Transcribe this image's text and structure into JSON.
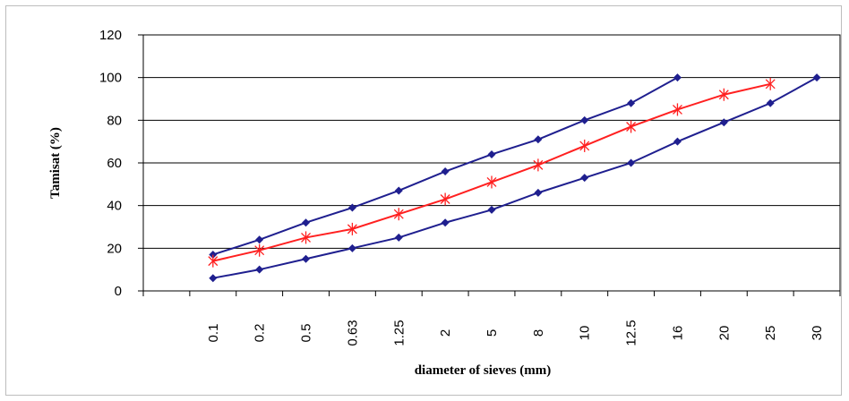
{
  "chart_data": {
    "type": "line",
    "title": "",
    "xlabel": "diameter of sieves (mm)",
    "ylabel": "Tamisat (%)",
    "ylim": [
      0,
      120
    ],
    "yticks": [
      "0",
      "20",
      "40",
      "60",
      "80",
      "100",
      "120"
    ],
    "categories": [
      "0.1",
      "0.2",
      "0.5",
      "0.63",
      "1.25",
      "2",
      "5",
      "8",
      "10",
      "12.5",
      "16",
      "20",
      "25",
      "30"
    ],
    "grid": "horizontal",
    "legend": "none",
    "series": [
      {
        "color": "#1f1f8f",
        "marker": "diamond",
        "x": [
          "0.1",
          "0.2",
          "0.5",
          "0.63",
          "1.25",
          "2",
          "5",
          "8",
          "10",
          "12.5",
          "16"
        ],
        "values": [
          17,
          24,
          32,
          39,
          47,
          56,
          64,
          71,
          80,
          88,
          100
        ]
      },
      {
        "color": "#ff2020",
        "marker": "asterisk",
        "x": [
          "0.1",
          "0.2",
          "0.5",
          "0.63",
          "1.25",
          "2",
          "5",
          "8",
          "10",
          "12.5",
          "16",
          "20",
          "25"
        ],
        "values": [
          14,
          19,
          25,
          29,
          36,
          43,
          51,
          59,
          68,
          77,
          85,
          92,
          97
        ]
      },
      {
        "color": "#1f1f8f",
        "marker": "diamond",
        "x": [
          "0.1",
          "0.2",
          "0.5",
          "0.63",
          "1.25",
          "2",
          "5",
          "8",
          "10",
          "12.5",
          "16",
          "20",
          "25",
          "30"
        ],
        "values": [
          6,
          10,
          15,
          20,
          25,
          32,
          38,
          46,
          53,
          60,
          70,
          79,
          88,
          100
        ]
      }
    ]
  }
}
